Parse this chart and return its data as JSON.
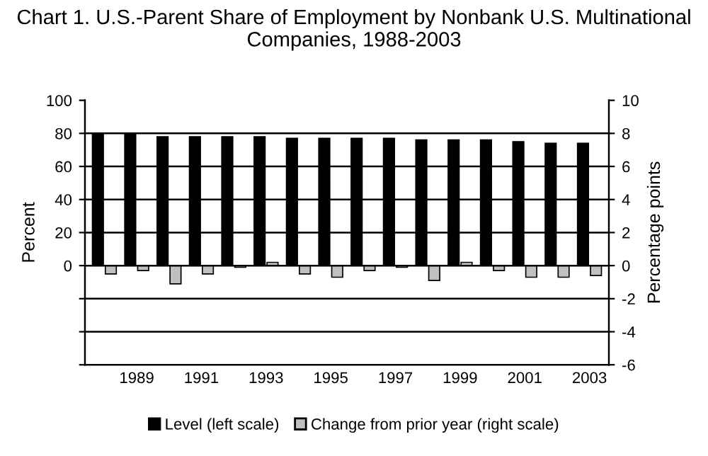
{
  "chart_data": {
    "type": "bar",
    "title": "Chart 1. U.S.-Parent Share of Employment by Nonbank U.S. Multinational Companies, 1988-2003",
    "categories": [
      null,
      "1989",
      null,
      "1991",
      null,
      "1993",
      null,
      "1995",
      null,
      "1997",
      null,
      "1999",
      null,
      "2001",
      null,
      "2003"
    ],
    "series": [
      {
        "name": "Level (left scale)",
        "color": "#000000",
        "values": [
          80,
          80,
          78,
          78,
          78,
          78,
          77,
          77,
          77,
          77,
          76,
          76,
          76,
          75,
          74,
          74
        ]
      },
      {
        "name": "Change from prior year (right scale)",
        "color": "#c0c0c0",
        "axis": "y2",
        "values": [
          -0.5,
          -0.3,
          -1.1,
          -0.5,
          -0.1,
          0.2,
          -0.5,
          -0.7,
          -0.3,
          -0.1,
          -0.9,
          0.2,
          -0.3,
          -0.7,
          -0.7,
          -0.6
        ]
      }
    ],
    "ylabel": "Percent",
    "y2label": "Percentage points",
    "ylim": [
      -60,
      100
    ],
    "yticks": [
      {
        "value": -60,
        "label": null
      },
      {
        "value": -40,
        "label": null
      },
      {
        "value": -20,
        "label": null
      },
      0,
      20,
      40,
      60,
      80,
      100
    ],
    "y2lim": [
      -6,
      10
    ],
    "y2ticks": [
      -6,
      -4,
      -2,
      0,
      2,
      4,
      6,
      8,
      10
    ],
    "grid": "y",
    "legend": "bottom"
  }
}
